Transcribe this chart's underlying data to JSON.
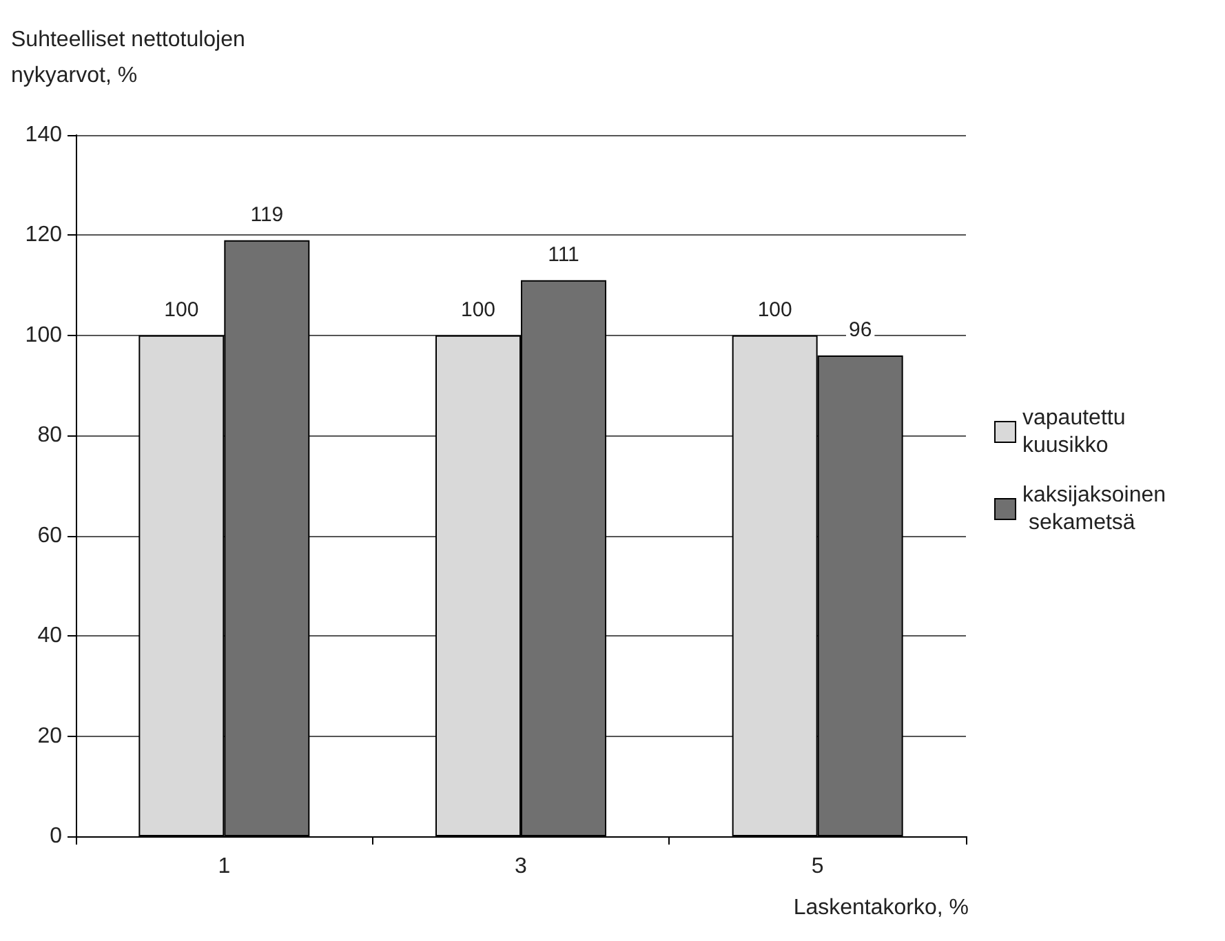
{
  "chart_data": {
    "type": "bar",
    "ylabel": "Suhteelliset nettotulojen nykyarvot, %",
    "xlabel": "Laskentakorko, %",
    "categories": [
      "1",
      "3",
      "5"
    ],
    "series": [
      {
        "name": "vapautettu kuusikko",
        "color": "#d9d9d9",
        "values": [
          100,
          100,
          100
        ]
      },
      {
        "name": "kaksijaksoinen sekametsä",
        "color": "#707070",
        "values": [
          119,
          111,
          96
        ]
      }
    ],
    "ylim": [
      0,
      140
    ],
    "yticks": [
      0,
      20,
      40,
      60,
      80,
      100,
      120,
      140
    ],
    "grid": "y",
    "legend": "right",
    "data_labels": true
  }
}
